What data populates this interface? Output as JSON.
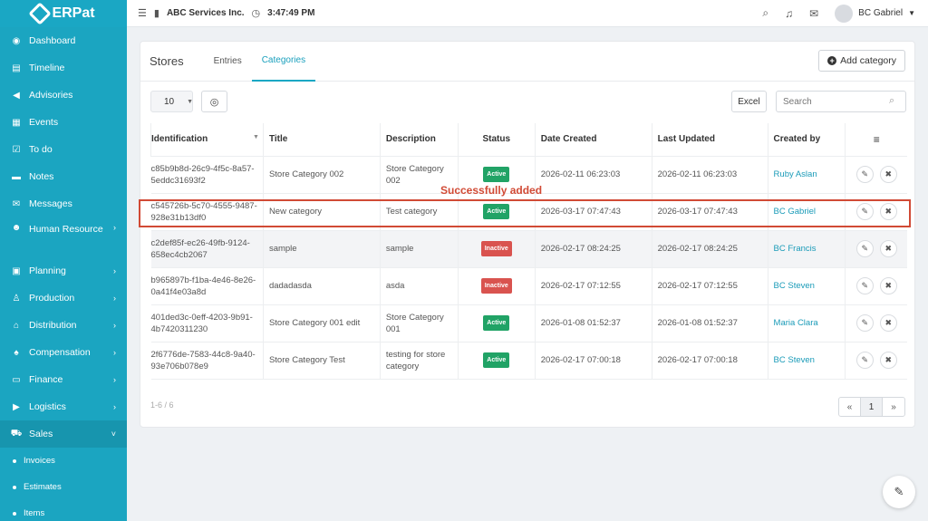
{
  "brand": {
    "name": "ERPat"
  },
  "header": {
    "company": "ABC Services Inc.",
    "time": "3:47:49 PM",
    "user": "BC Gabriel"
  },
  "sidebar": {
    "items": [
      {
        "label": "Dashboard",
        "icon": "dashboard-icon"
      },
      {
        "label": "Timeline",
        "icon": "timeline-icon"
      },
      {
        "label": "Advisories",
        "icon": "bullhorn-icon"
      },
      {
        "label": "Events",
        "icon": "calendar-icon"
      },
      {
        "label": "To do",
        "icon": "checkbox-icon"
      },
      {
        "label": "Notes",
        "icon": "note-icon"
      },
      {
        "label": "Messages",
        "icon": "envelope-icon"
      },
      {
        "label": "Human Resource",
        "icon": "people-icon"
      },
      {
        "label": "Planning",
        "icon": "briefcase-icon"
      },
      {
        "label": "Production",
        "icon": "flask-icon"
      },
      {
        "label": "Distribution",
        "icon": "bank-icon"
      },
      {
        "label": "Compensation",
        "icon": "compensation-icon"
      },
      {
        "label": "Finance",
        "icon": "money-icon"
      },
      {
        "label": "Logistics",
        "icon": "truck-icon"
      },
      {
        "label": "Sales",
        "icon": "cart-icon"
      }
    ],
    "sub_items": [
      "Invoices",
      "Estimates",
      "Items"
    ]
  },
  "page": {
    "title": "Stores",
    "tabs": [
      "Entries",
      "Categories"
    ],
    "active_tab": "Categories",
    "add_button": "Add category",
    "page_size": "10",
    "excel": "Excel",
    "search_placeholder": "Search",
    "success_message": "Successfully added"
  },
  "table": {
    "headers": [
      "Identification",
      "Title",
      "Description",
      "Status",
      "Date Created",
      "Last Updated",
      "Created by"
    ],
    "rows": [
      {
        "id": "c85b9b8d-26c9-4f5c-8a57-5eddc31693f2",
        "title": "Store Category 002",
        "description": "Store Category 002",
        "status": "Active",
        "created": "2026-02-11 06:23:03",
        "updated": "2026-02-11 06:23:03",
        "by": "Ruby Aslan"
      },
      {
        "id": "c545726b-5c70-4555-9487-928e31b13df0",
        "title": "New category",
        "description": "Test category",
        "status": "Active",
        "created": "2026-03-17 07:47:43",
        "updated": "2026-03-17 07:47:43",
        "by": "BC Gabriel"
      },
      {
        "id": "c2def85f-ec26-49fb-9124-658ec4cb2067",
        "title": "sample",
        "description": "sample",
        "status": "Inactive",
        "created": "2026-02-17 08:24:25",
        "updated": "2026-02-17 08:24:25",
        "by": "BC Francis"
      },
      {
        "id": "b965897b-f1ba-4e46-8e26-0a41f4e03a8d",
        "title": "dadadasda",
        "description": "asda",
        "status": "Inactive",
        "created": "2026-02-17 07:12:55",
        "updated": "2026-02-17 07:12:55",
        "by": "BC Steven"
      },
      {
        "id": "401ded3c-0eff-4203-9b91-4b7420311230",
        "title": "Store Category 001 edit",
        "description": "Store Category 001",
        "status": "Active",
        "created": "2026-01-08 01:52:37",
        "updated": "2026-01-08 01:52:37",
        "by": "Maria Clara"
      },
      {
        "id": "2f6776de-7583-44c8-9a40-93e706b078e9",
        "title": "Store Category Test",
        "description": "testing for store category",
        "status": "Active",
        "created": "2026-02-17 07:00:18",
        "updated": "2026-02-17 07:00:18",
        "by": "BC Steven"
      }
    ]
  },
  "footer": {
    "count": "1-6 / 6",
    "prev": "«",
    "current_page": "1",
    "next": "»"
  }
}
